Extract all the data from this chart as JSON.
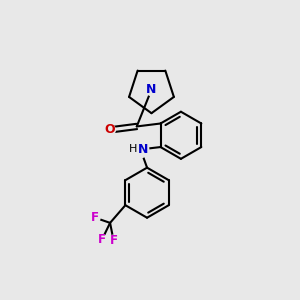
{
  "bg_color": "#e8e8e8",
  "bond_color": "#000000",
  "N_color": "#0000cc",
  "O_color": "#cc0000",
  "F_color": "#cc00cc",
  "line_width": 1.5,
  "figsize": [
    3.0,
    3.0
  ],
  "dpi": 100,
  "xlim": [
    0,
    10
  ],
  "ylim": [
    0,
    10
  ]
}
